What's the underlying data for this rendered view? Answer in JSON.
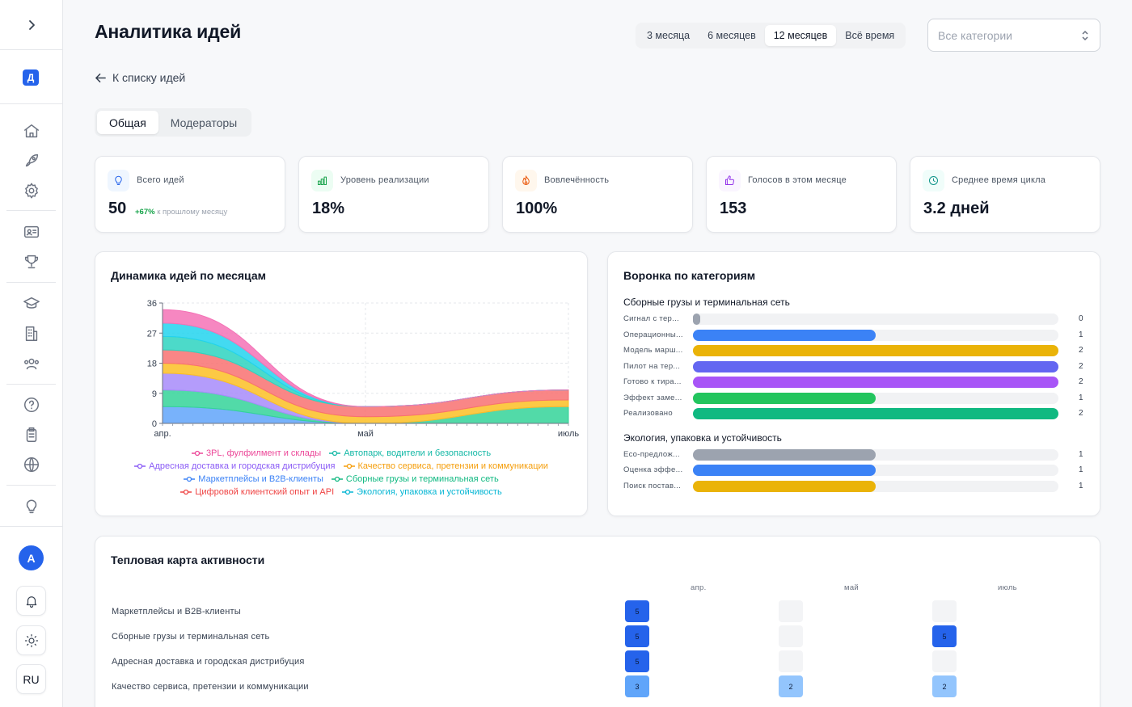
{
  "sidebar": {
    "org_badge": "Д",
    "avatar": "A",
    "language": "RU",
    "icons": [
      "chevron-right-icon",
      "home-icon",
      "rocket-icon",
      "gear-icon",
      "id-card-icon",
      "trophy-icon",
      "graduation-cap-icon",
      "building-icon",
      "users-icon",
      "help-icon",
      "clipboard-icon",
      "globe-icon",
      "lightbulb-icon",
      "bell-icon",
      "sun-icon"
    ]
  },
  "header": {
    "title": "Аналитика идей",
    "periods": [
      "3 месяца",
      "6 месяцев",
      "12 месяцев",
      "Всё время"
    ],
    "active_period": "12 месяцев",
    "category_select_placeholder": "Все категории"
  },
  "back_link": "К списку идей",
  "tabs": [
    "Общая",
    "Модераторы"
  ],
  "kpis": [
    {
      "label": "Всего идей",
      "value": "50",
      "delta": "+67%",
      "delta_text": "к прошлому месяцу",
      "icon": "lightbulb-icon",
      "color": "#2563eb"
    },
    {
      "label": "Уровень реализации",
      "value": "18%",
      "icon": "bar-chart-icon",
      "color": "#16a34a"
    },
    {
      "label": "Вовлечённость",
      "value": "100%",
      "icon": "flame-icon",
      "color": "#ea580c"
    },
    {
      "label": "Голосов в этом месяце",
      "value": "153",
      "icon": "thumbs-up-icon",
      "color": "#9333ea"
    },
    {
      "label": "Среднее время цикла",
      "value": "3.2 дней",
      "icon": "clock-icon",
      "color": "#0d9488"
    }
  ],
  "dynamics": {
    "title": "Динамика идей по месяцам"
  },
  "chart_data": {
    "type": "area",
    "stacked": true,
    "title": "Динамика идей по месяцам",
    "x": [
      "апр.",
      "май",
      "июль"
    ],
    "y_ticks": [
      0,
      9,
      18,
      27,
      36
    ],
    "ylim": [
      0,
      36
    ],
    "grid": true,
    "legend_position": "bottom",
    "series": [
      {
        "name": "Маркетплейсы и B2B-клиенты",
        "color": "#60a5fa",
        "values": [
          5,
          0,
          0
        ]
      },
      {
        "name": "Сборные грузы и терминальная сеть",
        "color": "#34d399",
        "values": [
          5,
          0,
          5
        ]
      },
      {
        "name": "Адресная доставка и городская дистрибуция",
        "color": "#a78bfa",
        "values": [
          5,
          0,
          0
        ]
      },
      {
        "name": "Качество сервиса, претензии и коммуникации",
        "color": "#fbbf24",
        "values": [
          3,
          2,
          2
        ]
      },
      {
        "name": "Цифровой клиентский опыт и API",
        "color": "#f87171",
        "values": [
          4,
          3,
          3
        ]
      },
      {
        "name": "Экология, упаковка и устойчивость",
        "color": "#2dd4bf",
        "values": [
          4,
          0,
          0
        ]
      },
      {
        "name": "Автопарк, водители и безопасность",
        "color": "#22d3ee",
        "values": [
          4,
          0,
          0
        ]
      },
      {
        "name": "3PL, фулфилмент и склады",
        "color": "#f472b6",
        "values": [
          4,
          0,
          0
        ]
      }
    ]
  },
  "legend": [
    [
      {
        "name": "3PL, фулфилмент и склады",
        "color": "#ec4899"
      },
      {
        "name": "Автопарк, водители и безопасность",
        "color": "#14b8a6"
      }
    ],
    [
      {
        "name": "Адресная доставка и городская дистрибуция",
        "color": "#8b5cf6"
      },
      {
        "name": "Качество сервиса, претензии и коммуникации",
        "color": "#f59e0b"
      }
    ],
    [
      {
        "name": "Маркетплейсы и B2B-клиенты",
        "color": "#3b82f6"
      },
      {
        "name": "Сборные грузы и терминальная сеть",
        "color": "#10b981"
      }
    ],
    [
      {
        "name": "Цифровой клиентский опыт и API",
        "color": "#ef4444"
      },
      {
        "name": "Экология, упаковка и устойчивость",
        "color": "#06b6d4"
      }
    ]
  ],
  "funnel": {
    "title": "Воронка по категориям",
    "max": 2,
    "groups": [
      {
        "name": "Сборные грузы и терминальная сеть",
        "stages": [
          {
            "label": "Сигнал с тер...",
            "count": 0,
            "color": "#9ca3af"
          },
          {
            "label": "Операционны...",
            "count": 1,
            "color": "#3b82f6"
          },
          {
            "label": "Модель марш...",
            "count": 2,
            "color": "#eab308"
          },
          {
            "label": "Пилот на тер...",
            "count": 2,
            "color": "#6366f1"
          },
          {
            "label": "Готово к тира...",
            "count": 2,
            "color": "#a855f7"
          },
          {
            "label": "Эффект заме...",
            "count": 1,
            "color": "#22c55e"
          },
          {
            "label": "Реализовано",
            "count": 2,
            "color": "#10b981"
          }
        ]
      },
      {
        "name": "Экология, упаковка и устойчивость",
        "stages": [
          {
            "label": "Eco-предлож...",
            "count": 1,
            "color": "#9ca3af"
          },
          {
            "label": "Оценка эффе...",
            "count": 1,
            "color": "#3b82f6"
          },
          {
            "label": "Поиск постав...",
            "count": 1,
            "color": "#eab308"
          }
        ]
      }
    ]
  },
  "heatmap": {
    "title": "Тепловая карта активности",
    "months": [
      "апр.",
      "май",
      "июль"
    ],
    "rows": [
      {
        "label": "Маркетплейсы и B2B-клиенты",
        "values": [
          5,
          null,
          null
        ]
      },
      {
        "label": "Сборные грузы и терминальная сеть",
        "values": [
          5,
          null,
          5
        ]
      },
      {
        "label": "Адресная доставка и городская дистрибуция",
        "values": [
          5,
          null,
          null
        ]
      },
      {
        "label": "Качество сервиса, претензии и коммуникации",
        "values": [
          3,
          2,
          2
        ]
      }
    ]
  }
}
